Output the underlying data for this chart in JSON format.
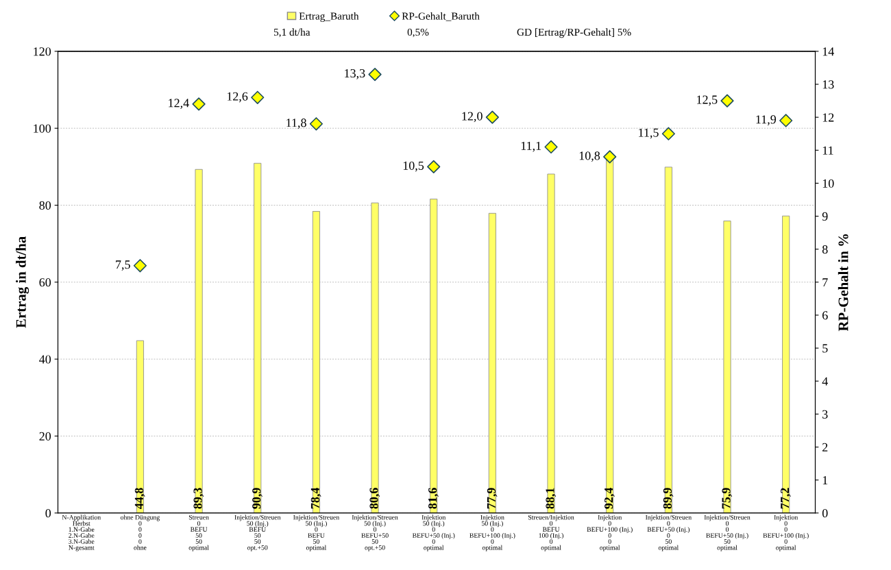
{
  "chart_data": {
    "type": "bar",
    "ylabel": "Ertrag in dt/ha",
    "y2label": "RP-Gehalt in %",
    "categories": [
      "N-Applikation\nHerbst\n1.N-Gabe\n2.N-Gabe\n3.N-Gabe\nN-gesamt",
      "ohne Düngung\n0\n0\n0\n0\nohne",
      "Streuen\n0\nBEFU\n50\n50\noptimal",
      "Injektion/Streuen\n50 (Inj.)\nBEFU\n50\n50\nopt.+50",
      "Injektion/Streuen\n50 (Inj.)\n0\nBEFU\n50\noptimal",
      "Injektion/Streuen\n50 (Inj.)\n0\nBEFU+50\n50\nopt.+50",
      "Injektion\n50 (Inj.)\n0\nBEFU+50 (Inj.)\n0\noptimal",
      "Injektion\n50 (Inj.)\n0\nBEFU+100 (Inj.)\n0\noptimal",
      "Streuen/Injektion\n0\nBEFU\n100 (Inj.)\n0\noptimal",
      "Injektion\n0\nBEFU+100 (Inj.)\n0\n0\noptimal",
      "Injektion/Streuen\n0\nBEFU+50 (Inj.)\n0\n50\noptimal",
      "Injektion/Streuen\n0\n0\nBEFU+50 (Inj.)\n50\noptimal",
      "Injektion\n0\n0\nBEFU+100 (Inj.)\n0\noptimal"
    ],
    "series": [
      {
        "name": "Ertrag_Baruth",
        "color": "#ffff66",
        "values": [
          null,
          44.8,
          89.3,
          90.9,
          78.4,
          80.6,
          81.6,
          77.9,
          88.1,
          92.4,
          89.9,
          75.9,
          77.2
        ],
        "value_labels": [
          null,
          "44,8",
          "89,3",
          "90,9",
          "78,4",
          "80,6",
          "81,6",
          "77,9",
          "88,1",
          "92,4",
          "89,9",
          "75,9",
          "77,2"
        ]
      },
      {
        "name": "RP-Gehalt_Baruth",
        "type": "scatter",
        "axis": "y2",
        "color": "#ffff00",
        "marker": "diamond",
        "values": [
          null,
          7.5,
          12.4,
          12.6,
          11.8,
          13.3,
          10.5,
          12.0,
          11.1,
          10.8,
          11.5,
          12.5,
          11.9
        ],
        "value_labels": [
          null,
          "7,5",
          "12,4",
          "12,6",
          "11,8",
          "13,3",
          "10,5",
          "12,0",
          "11,1",
          "10,8",
          "11,5",
          "12,5",
          "11,9"
        ]
      }
    ],
    "ylim": [
      0,
      120
    ],
    "yticks": [
      0,
      20,
      40,
      60,
      80,
      100,
      120
    ],
    "y2lim": [
      0,
      14
    ],
    "y2ticks": [
      0,
      1,
      2,
      3,
      4,
      5,
      6,
      7,
      8,
      9,
      10,
      11,
      12,
      13,
      14
    ],
    "grid": "y",
    "legend": "top",
    "annotations": [
      "5,1 dt/ha",
      "0,5%",
      "GD [Ertrag/RP-Gehalt] 5%"
    ]
  }
}
